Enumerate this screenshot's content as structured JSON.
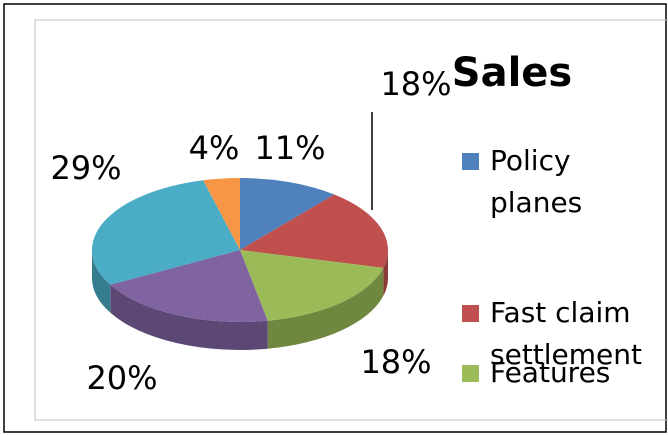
{
  "chart_data": {
    "type": "pie",
    "title": "Sales",
    "categories": [
      "Policy planes",
      "Fast claim settlement",
      "Features",
      null,
      null,
      null
    ],
    "values": [
      11,
      18,
      18,
      20,
      29,
      4
    ],
    "value_labels": [
      "11%",
      "18%",
      "18%",
      "20%",
      "29%",
      "4%"
    ],
    "colors": [
      "#4f81bd",
      "#c0504d",
      "#9bbb59",
      "#8064a2",
      "#4bacc6",
      "#f79646"
    ],
    "legend": "right"
  }
}
